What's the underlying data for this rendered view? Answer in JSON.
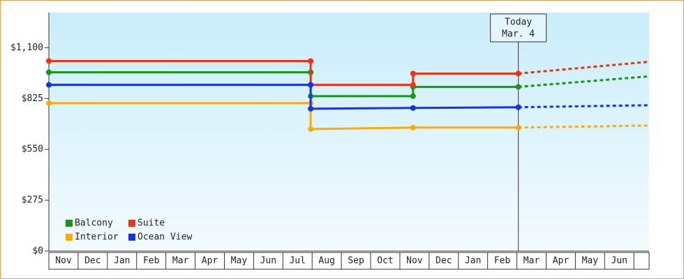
{
  "chart_data": {
    "type": "step-line",
    "categories": [
      "Nov",
      "Dec",
      "Jan",
      "Feb",
      "Mar",
      "Apr",
      "May",
      "Jun",
      "Jul",
      "Aug",
      "Sep",
      "Oct",
      "Nov",
      "Dec",
      "Jan",
      "Feb",
      "Mar",
      "Apr",
      "May",
      "Jun"
    ],
    "xlim": [
      0,
      20.52
    ],
    "ylim": [
      0,
      1290
    ],
    "yticks": [
      {
        "value": 0,
        "label": "$0"
      },
      {
        "value": 275,
        "label": "$275"
      },
      {
        "value": 550,
        "label": "$550"
      },
      {
        "value": 825,
        "label": "$825"
      },
      {
        "value": 1100,
        "label": "$1,100"
      }
    ],
    "today": {
      "x": 16.05,
      "label": "Today",
      "date": "Mar. 4"
    },
    "legend": "lower left",
    "series": [
      {
        "name": "Balcony",
        "color": "#119911",
        "x": [
          0,
          8.95,
          8.95,
          12.45,
          12.45,
          16.05
        ],
        "values": [
          967,
          967,
          838,
          838,
          888,
          888
        ],
        "forecast_x": [
          16.05,
          20.52
        ],
        "forecast_values": [
          888,
          945
        ]
      },
      {
        "name": "Suite",
        "color": "#ee3311",
        "x": [
          0,
          8.95,
          8.95,
          12.45,
          12.45,
          16.05
        ],
        "values": [
          1028,
          1028,
          899,
          899,
          960,
          960
        ],
        "forecast_x": [
          16.05,
          20.52
        ],
        "forecast_values": [
          960,
          1024
        ]
      },
      {
        "name": "Interior",
        "color": "#ffaa00",
        "x": [
          0,
          8.95,
          8.95,
          12.45,
          16.05
        ],
        "values": [
          800,
          800,
          660,
          668,
          668
        ],
        "forecast_x": [
          16.05,
          20.52
        ],
        "forecast_values": [
          668,
          679
        ]
      },
      {
        "name": "Ocean View",
        "color": "#1133ee",
        "x": [
          0,
          8.95,
          8.95,
          12.45,
          16.05
        ],
        "values": [
          899,
          899,
          770,
          774,
          778
        ],
        "forecast_x": [
          16.05,
          20.52
        ],
        "forecast_values": [
          778,
          789
        ]
      }
    ]
  }
}
